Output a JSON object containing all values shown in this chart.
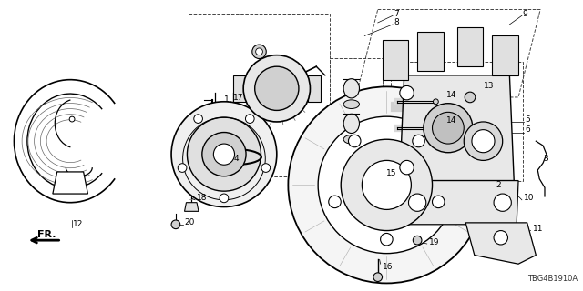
{
  "bg_color": "#ffffff",
  "part_code": "TBG4B1910A",
  "fig_w": 6.4,
  "fig_h": 3.2,
  "dpi": 100
}
